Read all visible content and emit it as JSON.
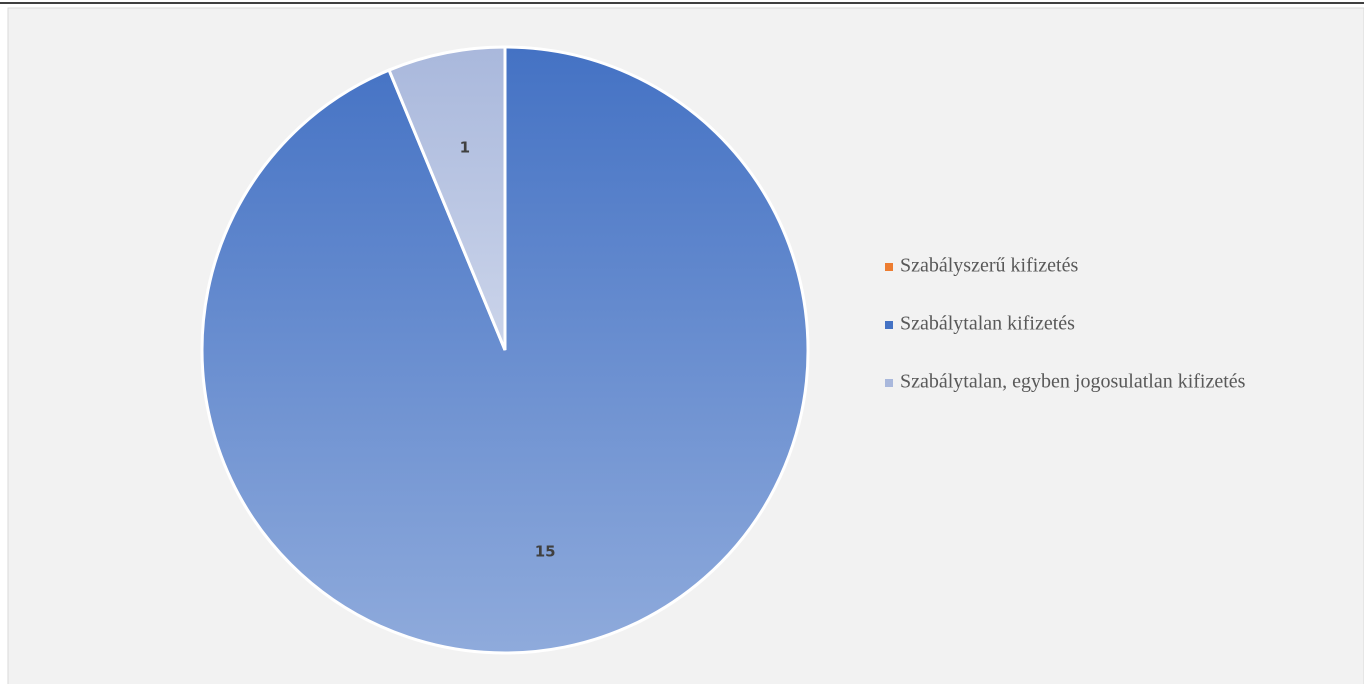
{
  "chart_data": {
    "type": "pie",
    "categories": [
      "Szabályszerű kifizetés",
      "Szabálytalan kifizetés",
      "Szabálytalan, egyben jogosulatlan kifizetés"
    ],
    "values": [
      0,
      15,
      1
    ],
    "colors": [
      "#ed7d31",
      "#4472c4",
      "#a9b8dc"
    ],
    "legend": "right"
  }
}
